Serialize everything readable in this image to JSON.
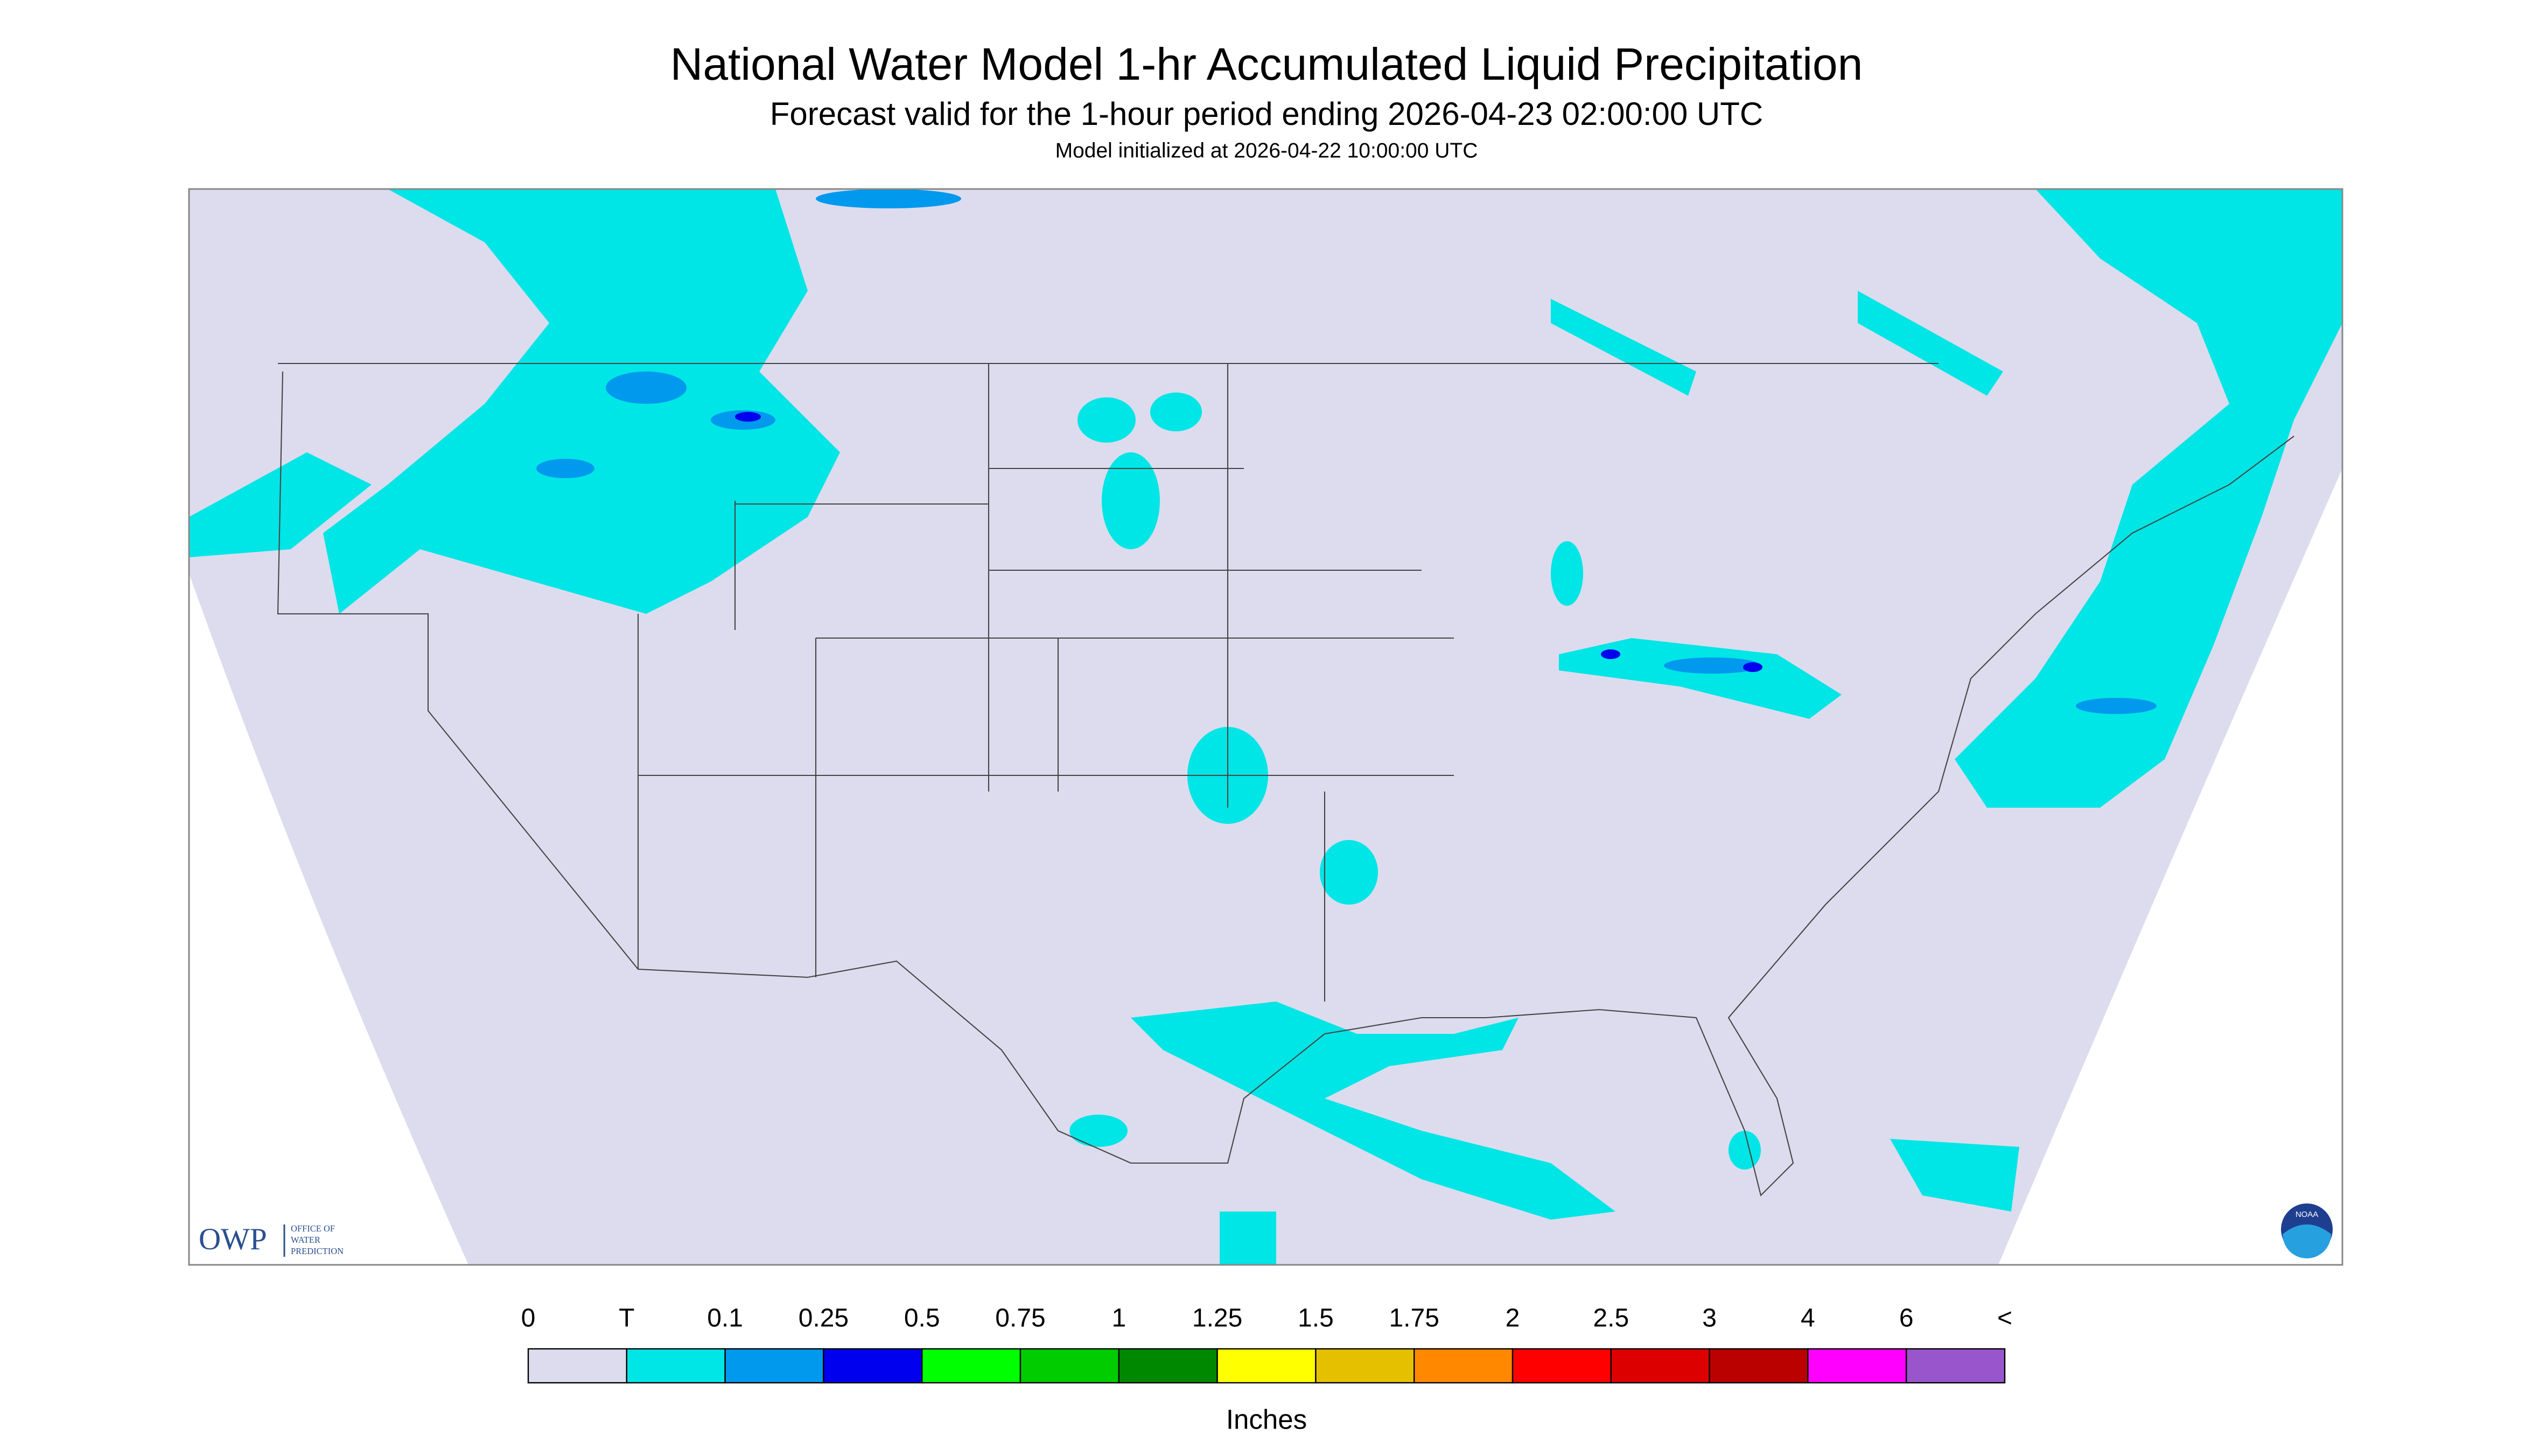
{
  "header": {
    "title": "National Water Model 1-hr Accumulated Liquid Precipitation",
    "subtitle": "Forecast valid for the 1-hour period ending 2026-04-23 02:00:00 UTC",
    "note": "Model initialized at 2026-04-22 10:00:00 UTC"
  },
  "legend": {
    "labels": [
      "0",
      "T",
      "0.1",
      "0.25",
      "0.5",
      "0.75",
      "1",
      "1.25",
      "1.5",
      "1.75",
      "2",
      "2.5",
      "3",
      "4",
      "6",
      "<"
    ],
    "colors": [
      "#dcdcee",
      "#00e5e5",
      "#0099ee",
      "#0000ee",
      "#00ff00",
      "#00cc00",
      "#008800",
      "#ffff00",
      "#e5c000",
      "#ff8800",
      "#ff0000",
      "#dd0000",
      "#bb0000",
      "#ff00ff",
      "#9955cc"
    ],
    "unit": "Inches"
  },
  "logos": {
    "owp": "OWP",
    "owp_name": [
      "OFFICE OF",
      "WATER",
      "PREDICTION"
    ],
    "noaa": "NOAA"
  }
}
